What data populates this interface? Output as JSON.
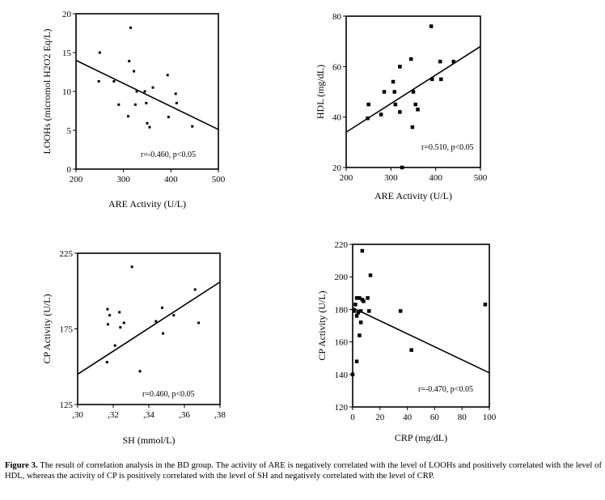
{
  "caption": {
    "label": "Figure 3.",
    "text": " The result of correlation analysis in the BD group. The activity of ARE is negatively correlated with the level of LOOHs and positively correlated with the level of HDL, whereas the activity of CP is positively correlated with the level of SH and negatively correlated with the level of CRP."
  },
  "chart_data": [
    {
      "type": "scatter",
      "xlabel": "ARE Activity (U/L)",
      "ylabel": "LOOHs (micromol H2O2 Eq/L)",
      "annotation": "r=-0.460, p<0.05",
      "xlim": [
        200,
        500
      ],
      "ylim": [
        0,
        20
      ],
      "xticks": [
        200,
        300,
        400,
        500
      ],
      "xtick_labels": [
        "200",
        "300",
        "400",
        "500"
      ],
      "yticks": [
        0,
        5,
        10,
        15,
        20
      ],
      "ytick_labels": [
        "0",
        "5",
        "10",
        "15",
        "20"
      ],
      "points": [
        [
          250,
          15
        ],
        [
          248,
          11.3
        ],
        [
          280,
          11.3
        ],
        [
          290,
          8.3
        ],
        [
          310,
          6.8
        ],
        [
          312,
          13.9
        ],
        [
          315,
          18.2
        ],
        [
          322,
          12.6
        ],
        [
          325,
          8.3
        ],
        [
          328,
          10
        ],
        [
          345,
          10
        ],
        [
          348,
          8.5
        ],
        [
          350,
          5.9
        ],
        [
          355,
          5.4
        ],
        [
          362,
          10.5
        ],
        [
          393,
          12.1
        ],
        [
          395,
          6.7
        ],
        [
          410,
          9.7
        ],
        [
          412,
          8.5
        ],
        [
          445,
          5.5
        ]
      ],
      "fit_line": [
        [
          200,
          14
        ],
        [
          500,
          5.1
        ]
      ]
    },
    {
      "type": "scatter",
      "xlabel": "ARE Activity (U/L)",
      "ylabel": "HDL (mg/dL)",
      "annotation": "r=0.510, p<0.05",
      "xlim": [
        200,
        500
      ],
      "ylim": [
        20,
        80
      ],
      "xticks": [
        200,
        300,
        400,
        500
      ],
      "xtick_labels": [
        "200",
        "300",
        "400",
        "500"
      ],
      "yticks": [
        20,
        40,
        60,
        80
      ],
      "ytick_labels": [
        "20",
        "40",
        "60",
        "80"
      ],
      "points": [
        [
          250,
          45
        ],
        [
          248,
          39.5
        ],
        [
          278,
          41
        ],
        [
          285,
          50
        ],
        [
          305,
          54
        ],
        [
          308,
          50
        ],
        [
          310,
          45
        ],
        [
          320,
          42
        ],
        [
          320,
          60
        ],
        [
          325,
          20
        ],
        [
          345,
          63
        ],
        [
          348,
          36
        ],
        [
          350,
          50
        ],
        [
          355,
          45
        ],
        [
          360,
          43
        ],
        [
          390,
          76
        ],
        [
          392,
          55
        ],
        [
          410,
          62
        ],
        [
          412,
          55
        ],
        [
          440,
          62
        ]
      ],
      "fit_line": [
        [
          200,
          34
        ],
        [
          500,
          68
        ]
      ]
    },
    {
      "type": "scatter",
      "xlabel": "SH (mmol/L)",
      "ylabel": "CP Activity (U/L)",
      "annotation": "r=0.460, p<0.05",
      "xlim": [
        0.3,
        0.38
      ],
      "ylim": [
        125,
        225
      ],
      "xticks": [
        0.3,
        0.32,
        0.34,
        0.36,
        0.38
      ],
      "xtick_labels": [
        ",30",
        ",32",
        ",34",
        ",36",
        ",38"
      ],
      "yticks": [
        125,
        175,
        225
      ],
      "ytick_labels": [
        "125",
        "175",
        "225"
      ],
      "points": [
        [
          0.3165,
          153
        ],
        [
          0.3168,
          188
        ],
        [
          0.317,
          178
        ],
        [
          0.318,
          184
        ],
        [
          0.321,
          164
        ],
        [
          0.3235,
          186
        ],
        [
          0.324,
          176
        ],
        [
          0.326,
          179
        ],
        [
          0.3305,
          216
        ],
        [
          0.335,
          147
        ],
        [
          0.344,
          180
        ],
        [
          0.3475,
          189
        ],
        [
          0.348,
          172
        ],
        [
          0.354,
          184
        ],
        [
          0.366,
          201
        ],
        [
          0.368,
          179
        ]
      ],
      "fit_line": [
        [
          0.3,
          145
        ],
        [
          0.38,
          206
        ]
      ]
    },
    {
      "type": "scatter",
      "xlabel": "CRP (mg/dL)",
      "ylabel": "CP Activity (U/L)",
      "annotation": "r=-0.470, p<0.05",
      "xlim": [
        0,
        100
      ],
      "ylim": [
        120,
        220
      ],
      "xticks": [
        0,
        20,
        40,
        60,
        80,
        100
      ],
      "xtick_labels": [
        "0",
        "20",
        "40",
        "60",
        "80",
        "100"
      ],
      "yticks": [
        120,
        140,
        160,
        180,
        200,
        220
      ],
      "ytick_labels": [
        "120",
        "140",
        "160",
        "180",
        "200",
        "220"
      ],
      "points": [
        [
          0,
          140
        ],
        [
          1,
          179
        ],
        [
          2,
          183
        ],
        [
          3,
          187
        ],
        [
          3,
          148
        ],
        [
          3,
          176
        ],
        [
          4,
          178
        ],
        [
          5,
          187
        ],
        [
          5,
          164
        ],
        [
          6,
          179
        ],
        [
          6,
          172
        ],
        [
          7,
          186
        ],
        [
          7,
          216
        ],
        [
          8,
          185
        ],
        [
          11,
          187
        ],
        [
          12,
          179
        ],
        [
          13,
          201
        ],
        [
          35,
          179
        ],
        [
          43,
          155
        ],
        [
          97,
          183
        ]
      ],
      "fit_line": [
        [
          0,
          181
        ],
        [
          100,
          141
        ]
      ]
    }
  ]
}
